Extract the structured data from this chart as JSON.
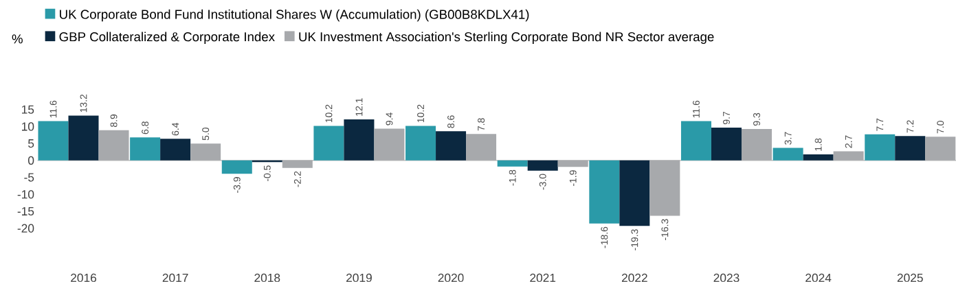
{
  "chart_data": {
    "type": "bar",
    "ylabel": "%",
    "categories": [
      "2016",
      "2017",
      "2018",
      "2019",
      "2020",
      "2021",
      "2022",
      "2023",
      "2024",
      "2025"
    ],
    "series": [
      {
        "name": "UK Corporate Bond Fund Institutional Shares W (Accumulation) (GB00B8KDLX41)",
        "color": "#2a9aa8",
        "values": [
          11.6,
          6.8,
          -3.9,
          10.2,
          10.2,
          -1.8,
          -18.6,
          11.6,
          3.7,
          7.7
        ],
        "value_labels": [
          "11.6",
          "6.8",
          "-3.9",
          "10.2",
          "10.2",
          "-1.8",
          "-18.6",
          "11.6",
          "3.7",
          "7.7"
        ]
      },
      {
        "name": "GBP Collateralized & Corporate Index",
        "color": "#0b2840",
        "values": [
          13.2,
          6.4,
          -0.5,
          12.1,
          8.6,
          -3.0,
          -19.3,
          9.7,
          1.8,
          7.2
        ],
        "value_labels": [
          "13.2",
          "6.4",
          "-0.5",
          "12.1",
          "8.6",
          "-3.0",
          "-19.3",
          "9.7",
          "1.8",
          "7.2"
        ]
      },
      {
        "name": "UK Investment Association's Sterling Corporate Bond NR Sector average",
        "color": "#a7a9ac",
        "values": [
          8.9,
          5.0,
          -2.2,
          9.4,
          7.8,
          -1.9,
          -16.3,
          9.3,
          2.7,
          7.0
        ],
        "value_labels": [
          "8.9",
          "5.0",
          "-2.2",
          "9.4",
          "7.8",
          "-1.9",
          "-16.3",
          "9.3",
          "2.7",
          "7.0"
        ]
      }
    ],
    "ylim": [
      -20,
      15
    ],
    "ref_lines": [
      {
        "axis": "y",
        "value": 0,
        "color": "#8c8c8c"
      }
    ],
    "yticks": [
      -20,
      -15,
      -10,
      -5,
      0,
      5,
      10,
      15
    ],
    "grid": false,
    "legend": "top left"
  }
}
